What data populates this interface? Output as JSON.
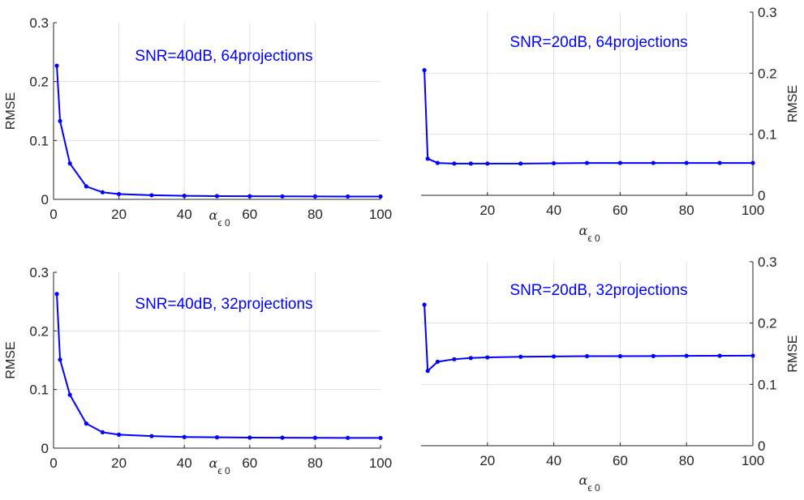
{
  "chart_data": [
    {
      "type": "line",
      "annotation": "SNR=40dB, 64projections",
      "xlabel_symbol": "α",
      "xlabel_sub": "ϵ 0",
      "ylabel": "RMSE",
      "ylabel_side": "left",
      "xlim": [
        0,
        100
      ],
      "ylim": [
        0,
        0.3
      ],
      "xticks": [
        "0",
        "20",
        "40",
        "60",
        "80",
        "100"
      ],
      "yticks": [
        "0",
        "0.1",
        "0.2",
        "0.3"
      ],
      "grid": true,
      "color": "#0000ff",
      "x": [
        1,
        2,
        5,
        10,
        15,
        20,
        30,
        40,
        50,
        60,
        70,
        80,
        90,
        100
      ],
      "y": [
        0.227,
        0.133,
        0.061,
        0.022,
        0.012,
        0.009,
        0.007,
        0.006,
        0.0055,
        0.0053,
        0.0051,
        0.005,
        0.0049,
        0.0048
      ]
    },
    {
      "type": "line",
      "annotation": "SNR=20dB, 64projections",
      "xlabel_symbol": "α",
      "xlabel_sub": "ϵ 0",
      "ylabel": "RMSE",
      "ylabel_side": "right",
      "xlim": [
        0,
        100
      ],
      "ylim": [
        0,
        0.3
      ],
      "xticks": [
        "20",
        "40",
        "60",
        "80",
        "100"
      ],
      "yticks": [
        "0",
        "0.1",
        "0.2",
        "0.3"
      ],
      "grid": true,
      "color": "#0000ff",
      "x": [
        1,
        2,
        5,
        10,
        15,
        20,
        30,
        40,
        50,
        60,
        70,
        80,
        90,
        100
      ],
      "y": [
        0.205,
        0.06,
        0.053,
        0.052,
        0.052,
        0.052,
        0.052,
        0.0525,
        0.053,
        0.053,
        0.053,
        0.053,
        0.053,
        0.053
      ]
    },
    {
      "type": "line",
      "annotation": "SNR=40dB, 32projections",
      "xlabel_symbol": "α",
      "xlabel_sub": "ϵ 0",
      "ylabel": "RMSE",
      "ylabel_side": "left",
      "xlim": [
        0,
        100
      ],
      "ylim": [
        0,
        0.3
      ],
      "xticks": [
        "0",
        "20",
        "40",
        "60",
        "80",
        "100"
      ],
      "yticks": [
        "0",
        "0.1",
        "0.2",
        "0.3"
      ],
      "grid": true,
      "color": "#0000ff",
      "x": [
        1,
        2,
        5,
        10,
        15,
        20,
        30,
        40,
        50,
        60,
        70,
        80,
        90,
        100
      ],
      "y": [
        0.263,
        0.151,
        0.091,
        0.042,
        0.027,
        0.023,
        0.0205,
        0.019,
        0.0185,
        0.018,
        0.0178,
        0.0176,
        0.0175,
        0.0174
      ]
    },
    {
      "type": "line",
      "annotation": "SNR=20dB, 32projections",
      "xlabel_symbol": "α",
      "xlabel_sub": "ϵ 0",
      "ylabel": "RMSE",
      "ylabel_side": "right",
      "xlim": [
        0,
        100
      ],
      "ylim": [
        0,
        0.3
      ],
      "xticks": [
        "20",
        "40",
        "60",
        "80",
        "100"
      ],
      "yticks": [
        "0",
        "0.1",
        "0.2",
        "0.3"
      ],
      "grid": true,
      "color": "#0000ff",
      "x": [
        1,
        2,
        5,
        10,
        15,
        20,
        30,
        40,
        50,
        60,
        70,
        80,
        90,
        100
      ],
      "y": [
        0.23,
        0.122,
        0.137,
        0.141,
        0.143,
        0.144,
        0.145,
        0.1455,
        0.146,
        0.146,
        0.1462,
        0.1465,
        0.1467,
        0.1468
      ]
    }
  ]
}
